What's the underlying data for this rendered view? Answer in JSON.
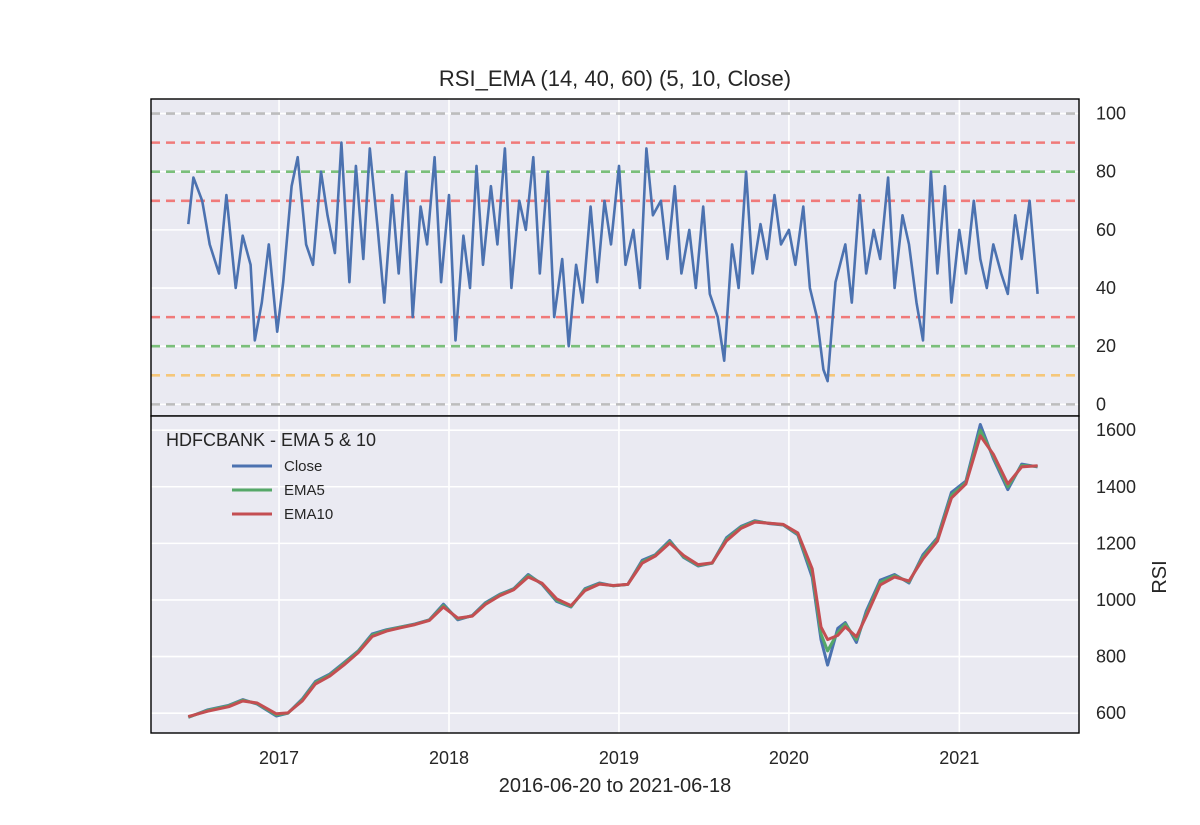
{
  "figure": {
    "title": "RSI_EMA (14, 40, 60) (5, 10, Close)",
    "xlabel": "2016-06-20 to 2021-06-18",
    "ylabel_right": "RSI"
  },
  "colors": {
    "background": "#eaeaf2",
    "grid": "#ffffff",
    "close": "#4c72b0",
    "ema5": "#55a868",
    "ema10": "#c44e52",
    "rsi": "#4c72b0",
    "ref_gray": "#bdbdbd",
    "ref_red": "#f07a7a",
    "ref_green": "#7abf7a",
    "ref_orange": "#f5c77a"
  },
  "chart_data": [
    {
      "type": "line",
      "title": "RSI_EMA (14, 40, 60) (5, 10, Close)",
      "ylim": [
        -4,
        105
      ],
      "yticks": [
        0,
        20,
        40,
        60,
        80,
        100
      ],
      "xlim": [
        "2016-04-01",
        "2021-09-15"
      ],
      "xticks": [
        "2017",
        "2018",
        "2019",
        "2020",
        "2021"
      ],
      "grid": true,
      "reference_lines": [
        {
          "y": 100,
          "color": "ref_gray"
        },
        {
          "y": 90,
          "color": "ref_red"
        },
        {
          "y": 80,
          "color": "ref_green"
        },
        {
          "y": 70,
          "color": "ref_red"
        },
        {
          "y": 30,
          "color": "ref_red"
        },
        {
          "y": 20,
          "color": "ref_green"
        },
        {
          "y": 10,
          "color": "ref_orange"
        },
        {
          "y": 0,
          "color": "ref_gray"
        }
      ],
      "series": [
        {
          "color": "rsi",
          "x": [
            "2016-06-20",
            "2016-07-01",
            "2016-07-20",
            "2016-08-05",
            "2016-08-25",
            "2016-09-10",
            "2016-09-30",
            "2016-10-15",
            "2016-11-01",
            "2016-11-10",
            "2016-11-25",
            "2016-12-10",
            "2016-12-28",
            "2017-01-10",
            "2017-01-28",
            "2017-02-10",
            "2017-02-28",
            "2017-03-15",
            "2017-04-01",
            "2017-04-15",
            "2017-05-01",
            "2017-05-15",
            "2017-06-01",
            "2017-06-15",
            "2017-07-01",
            "2017-07-15",
            "2017-08-01",
            "2017-08-15",
            "2017-09-01",
            "2017-09-15",
            "2017-10-01",
            "2017-10-15",
            "2017-11-01",
            "2017-11-15",
            "2017-12-01",
            "2017-12-15",
            "2018-01-01",
            "2018-01-15",
            "2018-02-01",
            "2018-02-15",
            "2018-03-01",
            "2018-03-15",
            "2018-04-01",
            "2018-04-15",
            "2018-05-01",
            "2018-05-15",
            "2018-06-01",
            "2018-06-15",
            "2018-07-01",
            "2018-07-15",
            "2018-08-01",
            "2018-08-15",
            "2018-09-01",
            "2018-09-15",
            "2018-10-01",
            "2018-10-15",
            "2018-11-01",
            "2018-11-15",
            "2018-12-01",
            "2018-12-15",
            "2019-01-01",
            "2019-01-15",
            "2019-02-01",
            "2019-02-15",
            "2019-03-01",
            "2019-03-15",
            "2019-04-01",
            "2019-04-15",
            "2019-05-01",
            "2019-05-15",
            "2019-06-01",
            "2019-06-15",
            "2019-07-01",
            "2019-07-15",
            "2019-08-01",
            "2019-08-15",
            "2019-09-01",
            "2019-09-15",
            "2019-10-01",
            "2019-10-15",
            "2019-11-01",
            "2019-11-15",
            "2019-12-01",
            "2019-12-15",
            "2020-01-01",
            "2020-01-15",
            "2020-02-01",
            "2020-02-15",
            "2020-03-01",
            "2020-03-15",
            "2020-03-24",
            "2020-04-10",
            "2020-05-01",
            "2020-05-15",
            "2020-06-01",
            "2020-06-15",
            "2020-07-01",
            "2020-07-15",
            "2020-08-01",
            "2020-08-15",
            "2020-09-01",
            "2020-09-15",
            "2020-10-01",
            "2020-10-15",
            "2020-11-01",
            "2020-11-15",
            "2020-12-01",
            "2020-12-15",
            "2021-01-01",
            "2021-01-15",
            "2021-02-01",
            "2021-02-15",
            "2021-03-01",
            "2021-03-15",
            "2021-04-01",
            "2021-04-15",
            "2021-05-01",
            "2021-05-15",
            "2021-06-01",
            "2021-06-18"
          ],
          "values": [
            62,
            78,
            70,
            55,
            45,
            72,
            40,
            58,
            48,
            22,
            35,
            55,
            25,
            42,
            75,
            85,
            55,
            48,
            80,
            65,
            52,
            90,
            42,
            82,
            50,
            88,
            60,
            35,
            72,
            45,
            80,
            30,
            68,
            55,
            85,
            42,
            72,
            22,
            58,
            40,
            82,
            48,
            75,
            55,
            88,
            40,
            70,
            60,
            85,
            45,
            80,
            30,
            50,
            20,
            48,
            35,
            68,
            42,
            70,
            55,
            82,
            48,
            60,
            40,
            88,
            65,
            70,
            50,
            75,
            45,
            60,
            40,
            68,
            38,
            30,
            15,
            55,
            40,
            80,
            45,
            62,
            50,
            72,
            55,
            60,
            48,
            68,
            40,
            30,
            12,
            8,
            42,
            55,
            35,
            72,
            45,
            60,
            50,
            78,
            40,
            65,
            55,
            35,
            22,
            80,
            45,
            75,
            35,
            60,
            45,
            70,
            50,
            40,
            55,
            45,
            38,
            65,
            50,
            70,
            38
          ]
        }
      ]
    },
    {
      "type": "line",
      "legend_title": "HDFCBANK - EMA 5 & 10",
      "legend_position": "top-left",
      "ylim": [
        530,
        1650
      ],
      "yticks": [
        600,
        800,
        1000,
        1200,
        1400,
        1600
      ],
      "xlim": [
        "2016-04-01",
        "2021-09-15"
      ],
      "xticks": [
        "2017",
        "2018",
        "2019",
        "2020",
        "2021"
      ],
      "grid": true,
      "x": [
        "2016-06-20",
        "2016-08-01",
        "2016-09-15",
        "2016-10-15",
        "2016-11-15",
        "2016-12-26",
        "2017-01-20",
        "2017-02-20",
        "2017-03-20",
        "2017-04-20",
        "2017-05-20",
        "2017-06-20",
        "2017-07-20",
        "2017-08-20",
        "2017-09-20",
        "2017-10-20",
        "2017-11-20",
        "2017-12-20",
        "2018-01-20",
        "2018-02-20",
        "2018-03-20",
        "2018-04-20",
        "2018-05-20",
        "2018-06-20",
        "2018-07-20",
        "2018-08-20",
        "2018-09-20",
        "2018-10-20",
        "2018-11-20",
        "2018-12-20",
        "2019-01-20",
        "2019-02-20",
        "2019-03-20",
        "2019-04-20",
        "2019-05-20",
        "2019-06-20",
        "2019-07-20",
        "2019-08-20",
        "2019-09-20",
        "2019-10-20",
        "2019-11-20",
        "2019-12-20",
        "2020-01-20",
        "2020-02-20",
        "2020-03-10",
        "2020-03-24",
        "2020-04-15",
        "2020-05-01",
        "2020-05-25",
        "2020-06-15",
        "2020-07-15",
        "2020-08-15",
        "2020-09-15",
        "2020-10-15",
        "2020-11-15",
        "2020-12-15",
        "2021-01-15",
        "2021-02-15",
        "2021-03-15",
        "2021-04-15",
        "2021-05-15",
        "2021-06-18"
      ],
      "series": [
        {
          "name": "Close",
          "color": "close",
          "values": [
            585,
            612,
            628,
            648,
            632,
            590,
            600,
            650,
            712,
            738,
            778,
            820,
            880,
            895,
            905,
            915,
            930,
            985,
            930,
            945,
            990,
            1020,
            1040,
            1090,
            1055,
            995,
            975,
            1040,
            1060,
            1050,
            1055,
            1140,
            1160,
            1210,
            1150,
            1120,
            1130,
            1220,
            1260,
            1280,
            1270,
            1265,
            1230,
            1080,
            860,
            770,
            900,
            920,
            850,
            960,
            1070,
            1090,
            1060,
            1160,
            1220,
            1380,
            1420,
            1620,
            1500,
            1390,
            1480,
            1470
          ]
        },
        {
          "name": "EMA5",
          "color": "ema5",
          "values": [
            586,
            610,
            626,
            646,
            634,
            594,
            600,
            647,
            708,
            735,
            775,
            818,
            876,
            893,
            904,
            914,
            929,
            980,
            933,
            944,
            987,
            1018,
            1038,
            1086,
            1057,
            999,
            977,
            1037,
            1058,
            1050,
            1055,
            1135,
            1158,
            1206,
            1153,
            1122,
            1130,
            1215,
            1257,
            1278,
            1271,
            1266,
            1233,
            1095,
            880,
            820,
            885,
            915,
            860,
            950,
            1062,
            1086,
            1064,
            1152,
            1215,
            1370,
            1415,
            1600,
            1508,
            1400,
            1475,
            1472
          ]
        },
        {
          "name": "EMA10",
          "color": "ema10",
          "values": [
            588,
            607,
            623,
            643,
            636,
            598,
            601,
            643,
            703,
            731,
            770,
            814,
            871,
            890,
            902,
            913,
            928,
            975,
            936,
            943,
            984,
            1015,
            1036,
            1081,
            1059,
            1004,
            980,
            1033,
            1056,
            1051,
            1055,
            1130,
            1155,
            1201,
            1157,
            1125,
            1131,
            1209,
            1253,
            1275,
            1271,
            1267,
            1237,
            1110,
            905,
            860,
            875,
            905,
            870,
            942,
            1053,
            1081,
            1067,
            1145,
            1208,
            1360,
            1410,
            1580,
            1515,
            1410,
            1470,
            1474
          ]
        }
      ]
    }
  ]
}
